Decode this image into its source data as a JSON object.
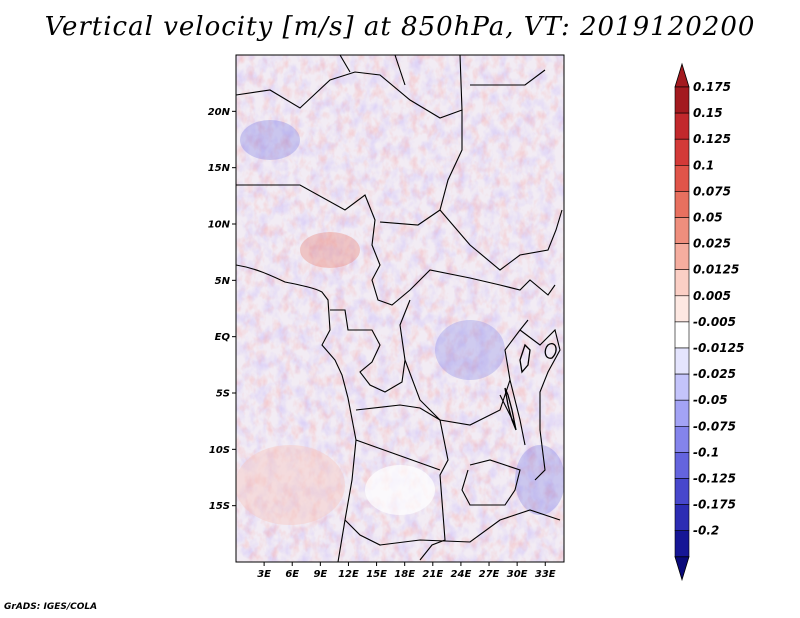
{
  "chart_data": {
    "type": "heatmap",
    "title": "Vertical velocity [m/s] at 850hPa, VT: 2019120200",
    "x_ticks": [
      "3E",
      "6E",
      "9E",
      "12E",
      "15E",
      "18E",
      "21E",
      "24E",
      "27E",
      "30E",
      "33E"
    ],
    "y_ticks": [
      "20N",
      "15N",
      "10N",
      "5N",
      "EQ",
      "5S",
      "10S",
      "15S"
    ],
    "lon_range": [
      0,
      35
    ],
    "lat_range": [
      -20,
      25
    ],
    "colorbar": {
      "labels": [
        "0.175",
        "0.15",
        "0.125",
        "0.1",
        "0.075",
        "0.05",
        "0.025",
        "0.0125",
        "0.005",
        "-0.005",
        "-0.0125",
        "-0.025",
        "-0.05",
        "-0.075",
        "-0.1",
        "-0.125",
        "-0.175",
        "-0.2"
      ],
      "colors": [
        "#a31a1f",
        "#c2282c",
        "#d33a38",
        "#e05449",
        "#e8705f",
        "#ef8e7d",
        "#f5ad9f",
        "#fbcfc5",
        "#fde8e2",
        "#ffffff",
        "#e4e4fd",
        "#c4c4fb",
        "#a3a3f5",
        "#8484ec",
        "#6464de",
        "#4747cc",
        "#2c2cb3",
        "#161696"
      ],
      "arrow_top": "#a31a1f",
      "arrow_bottom": "#0a0a7a"
    }
  },
  "footer": "GrADS: IGES/COLA"
}
